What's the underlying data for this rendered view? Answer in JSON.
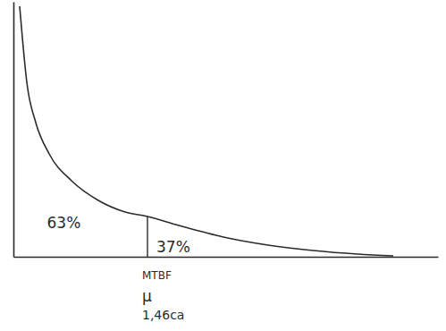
{
  "chart_data": {
    "type": "line",
    "x": [
      7,
      10,
      15,
      25,
      40,
      65,
      95,
      125,
      150,
      185,
      235,
      285,
      335,
      385,
      425
    ],
    "y": [
      280,
      245,
      195,
      150,
      115,
      85,
      63,
      50,
      45,
      35,
      22,
      13,
      7,
      3,
      1
    ],
    "xlim": [
      0,
      475
    ],
    "ylim": [
      0,
      285
    ],
    "tick_labels": false,
    "color": "#2b2b2b",
    "regions": {
      "values": [
        63,
        37
      ],
      "value_labels": [
        "63%",
        "37%"
      ]
    },
    "data_labels": true,
    "mtbf": {
      "x": 150,
      "y": 45,
      "labels": [
        "MTBF",
        "μ",
        "1,46ca"
      ]
    }
  }
}
